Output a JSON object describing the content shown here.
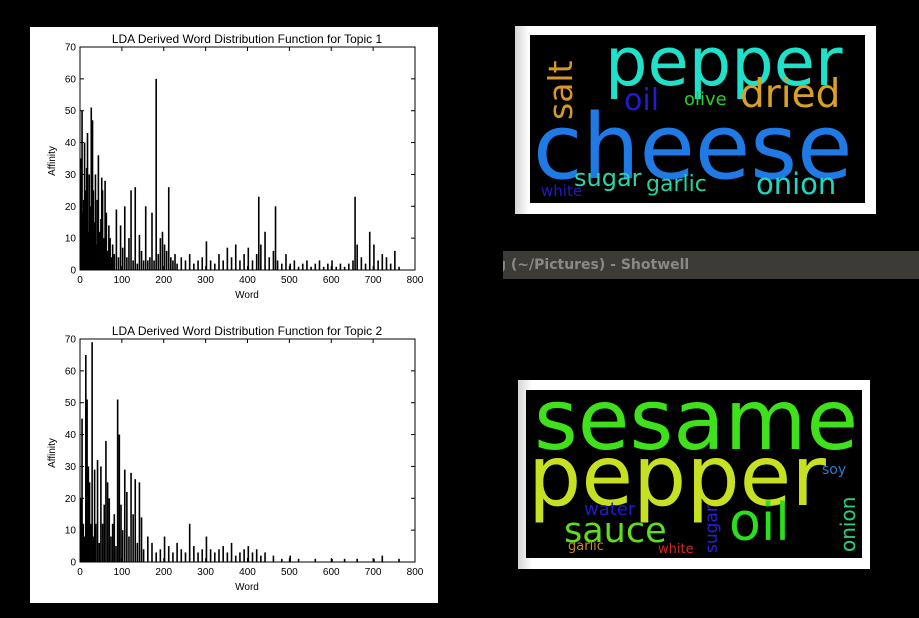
{
  "chart_data": [
    {
      "type": "bar",
      "title": "LDA Derived Word Distribution Function for Topic 1",
      "xlabel": "Word",
      "ylabel": "Affinity",
      "xlim": [
        0,
        800
      ],
      "ylim": [
        0,
        70
      ],
      "xticks": [
        0,
        100,
        200,
        300,
        400,
        500,
        600,
        700,
        800
      ],
      "yticks": [
        0,
        10,
        20,
        30,
        40,
        50,
        60,
        70
      ],
      "x": [
        0,
        3,
        5,
        7,
        9,
        12,
        14,
        16,
        18,
        20,
        22,
        25,
        28,
        30,
        32,
        35,
        37,
        39,
        42,
        45,
        48,
        50,
        52,
        55,
        58,
        61,
        64,
        67,
        70,
        73,
        76,
        80,
        85,
        90,
        95,
        100,
        105,
        110,
        115,
        120,
        125,
        130,
        135,
        140,
        145,
        150,
        155,
        160,
        165,
        170,
        175,
        180,
        185,
        190,
        195,
        200,
        205,
        210,
        215,
        220,
        225,
        230,
        240,
        250,
        260,
        270,
        280,
        290,
        300,
        310,
        320,
        330,
        340,
        350,
        360,
        370,
        380,
        390,
        400,
        410,
        420,
        425,
        430,
        440,
        450,
        460,
        465,
        470,
        480,
        490,
        500,
        510,
        520,
        530,
        540,
        550,
        560,
        570,
        580,
        590,
        600,
        610,
        620,
        630,
        640,
        650,
        655,
        660,
        670,
        680,
        690,
        700,
        710,
        720,
        730,
        740,
        750,
        760
      ],
      "values": [
        35,
        50,
        18,
        22,
        40,
        25,
        32,
        43,
        12,
        30,
        20,
        51,
        47,
        25,
        15,
        30,
        8,
        22,
        36,
        12,
        16,
        29,
        25,
        10,
        28,
        18,
        6,
        14,
        10,
        4,
        8,
        5,
        19,
        4,
        14,
        7,
        20,
        4,
        10,
        25,
        3,
        26,
        2,
        11,
        6,
        3,
        20,
        3,
        4,
        18,
        3,
        60,
        5,
        10,
        12,
        8,
        6,
        26,
        4,
        3,
        5,
        2,
        4,
        3,
        5,
        2,
        3,
        4,
        9,
        3,
        2,
        5,
        3,
        7,
        4,
        8,
        3,
        5,
        7,
        3,
        5,
        23,
        8,
        12,
        4,
        6,
        20,
        3,
        2,
        5,
        2,
        3,
        1,
        2,
        3,
        1,
        2,
        3,
        1,
        2,
        3,
        1,
        2,
        1,
        2,
        3,
        23,
        8,
        4,
        2,
        12,
        8,
        3,
        5,
        4,
        2,
        6,
        1
      ]
    },
    {
      "type": "bar",
      "title": "LDA Derived Word Distribution Function for Topic 2",
      "xlabel": "Word",
      "ylabel": "Affinity",
      "xlim": [
        0,
        800
      ],
      "ylim": [
        0,
        70
      ],
      "xticks": [
        0,
        100,
        200,
        300,
        400,
        500,
        600,
        700,
        800
      ],
      "yticks": [
        0,
        10,
        20,
        30,
        40,
        50,
        60,
        70
      ],
      "x": [
        0,
        3,
        6,
        9,
        12,
        15,
        18,
        21,
        24,
        27,
        30,
        33,
        36,
        40,
        44,
        48,
        52,
        56,
        60,
        64,
        68,
        72,
        76,
        80,
        84,
        88,
        92,
        96,
        100,
        105,
        110,
        115,
        120,
        125,
        130,
        135,
        140,
        145,
        150,
        160,
        170,
        180,
        190,
        200,
        210,
        220,
        230,
        240,
        250,
        260,
        270,
        280,
        290,
        300,
        310,
        320,
        330,
        340,
        350,
        360,
        370,
        380,
        390,
        400,
        410,
        420,
        430,
        440,
        460,
        480,
        500,
        520,
        560,
        600,
        630,
        660,
        700,
        720,
        760
      ],
      "values": [
        20,
        45,
        12,
        8,
        65,
        51,
        30,
        25,
        12,
        69,
        8,
        29,
        12,
        32,
        6,
        30,
        12,
        18,
        38,
        25,
        20,
        8,
        12,
        15,
        5,
        51,
        40,
        18,
        10,
        29,
        22,
        8,
        28,
        15,
        26,
        6,
        25,
        14,
        4,
        8,
        6,
        3,
        4,
        8,
        5,
        3,
        6,
        4,
        3,
        12,
        5,
        3,
        4,
        8,
        4,
        3,
        4,
        5,
        3,
        6,
        2,
        3,
        4,
        5,
        3,
        4,
        2,
        3,
        2,
        1,
        2,
        1,
        1,
        1,
        1,
        1,
        1,
        2,
        1
      ]
    }
  ],
  "wordclouds": [
    {
      "name": "topic-1-wordcloud",
      "words": [
        {
          "text": "pepper",
          "color": "#1fe0c8"
        },
        {
          "text": "salt",
          "color": "#d6962a"
        },
        {
          "text": "oil",
          "color": "#2319d6"
        },
        {
          "text": "olive",
          "color": "#26d02a"
        },
        {
          "text": "dried",
          "color": "#d9a024"
        },
        {
          "text": "cheese",
          "color": "#1f7ae6"
        },
        {
          "text": "sugar",
          "color": "#2ad6a8"
        },
        {
          "text": "garlic",
          "color": "#24d3a0"
        },
        {
          "text": "onion",
          "color": "#1fd8c4"
        },
        {
          "text": "white",
          "color": "#2418c8"
        }
      ]
    },
    {
      "name": "topic-2-wordcloud",
      "words": [
        {
          "text": "sesame",
          "color": "#3fe21a"
        },
        {
          "text": "pepper",
          "color": "#c8e022"
        },
        {
          "text": "soy",
          "color": "#2a7acc"
        },
        {
          "text": "water",
          "color": "#2418d0"
        },
        {
          "text": "sauce",
          "color": "#5ede1e"
        },
        {
          "text": "sugar",
          "color": "#2a20d8"
        },
        {
          "text": "oil",
          "color": "#2ae01c"
        },
        {
          "text": "onion",
          "color": "#2ad27c"
        },
        {
          "text": "garlic",
          "color": "#c88a24"
        },
        {
          "text": "white",
          "color": "#d02a20"
        }
      ]
    }
  ],
  "window": {
    "title_fragment": "g (~/Pictures) - Shotwell"
  }
}
